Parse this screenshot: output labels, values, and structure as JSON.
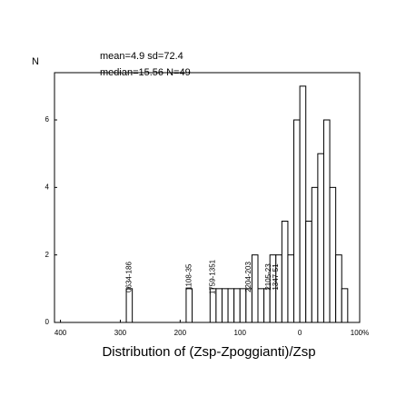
{
  "chart_data": {
    "type": "histogram",
    "x_label": "Distribution of (Zsp-Zpoggianti)/Zsp",
    "y_label": "N",
    "annotations_text": [
      "mean=4.9  sd=72.4",
      "median=15.56  N=49"
    ],
    "bins": [
      -300,
      -290,
      -280,
      -270,
      -260,
      -250,
      -240,
      -230,
      -220,
      -210,
      -200,
      -190,
      -180,
      -170,
      -160,
      -150,
      -140,
      -130,
      -120,
      -110,
      -100,
      -90,
      -80,
      -70,
      -60,
      -50,
      -40,
      -30,
      -20,
      -10,
      0,
      10,
      20,
      30,
      40,
      50,
      60,
      70,
      80
    ],
    "counts": [
      0,
      1,
      0,
      0,
      0,
      0,
      0,
      0,
      0,
      0,
      0,
      1,
      0,
      0,
      0,
      1,
      1,
      1,
      1,
      1,
      1,
      1,
      2,
      1,
      1,
      2,
      2,
      3,
      2,
      6,
      7,
      3,
      4,
      5,
      6,
      4,
      2,
      1
    ],
    "bar_labels": [
      {
        "text": "0634-186",
        "x": -285
      },
      {
        "text": "1108-35",
        "x": -185
      },
      {
        "text": "1759-1351",
        "x": -145
      },
      {
        "text": "2204-203",
        "x": -85
      },
      {
        "text": "2105-23",
        "x": -52
      },
      {
        "text": "1347-51",
        "x": -40
      }
    ],
    "color": "#000000",
    "xlim": [
      -410,
      100
    ],
    "ylim": [
      0,
      7.4
    ],
    "xticks": [
      {
        "value": -400,
        "label": "400"
      },
      {
        "value": -300,
        "label": "300"
      },
      {
        "value": -200,
        "label": "200"
      },
      {
        "value": -100,
        "label": "100"
      },
      0,
      {
        "value": 100,
        "label": "100%"
      }
    ],
    "yticks": [
      0,
      2,
      4,
      6
    ]
  }
}
